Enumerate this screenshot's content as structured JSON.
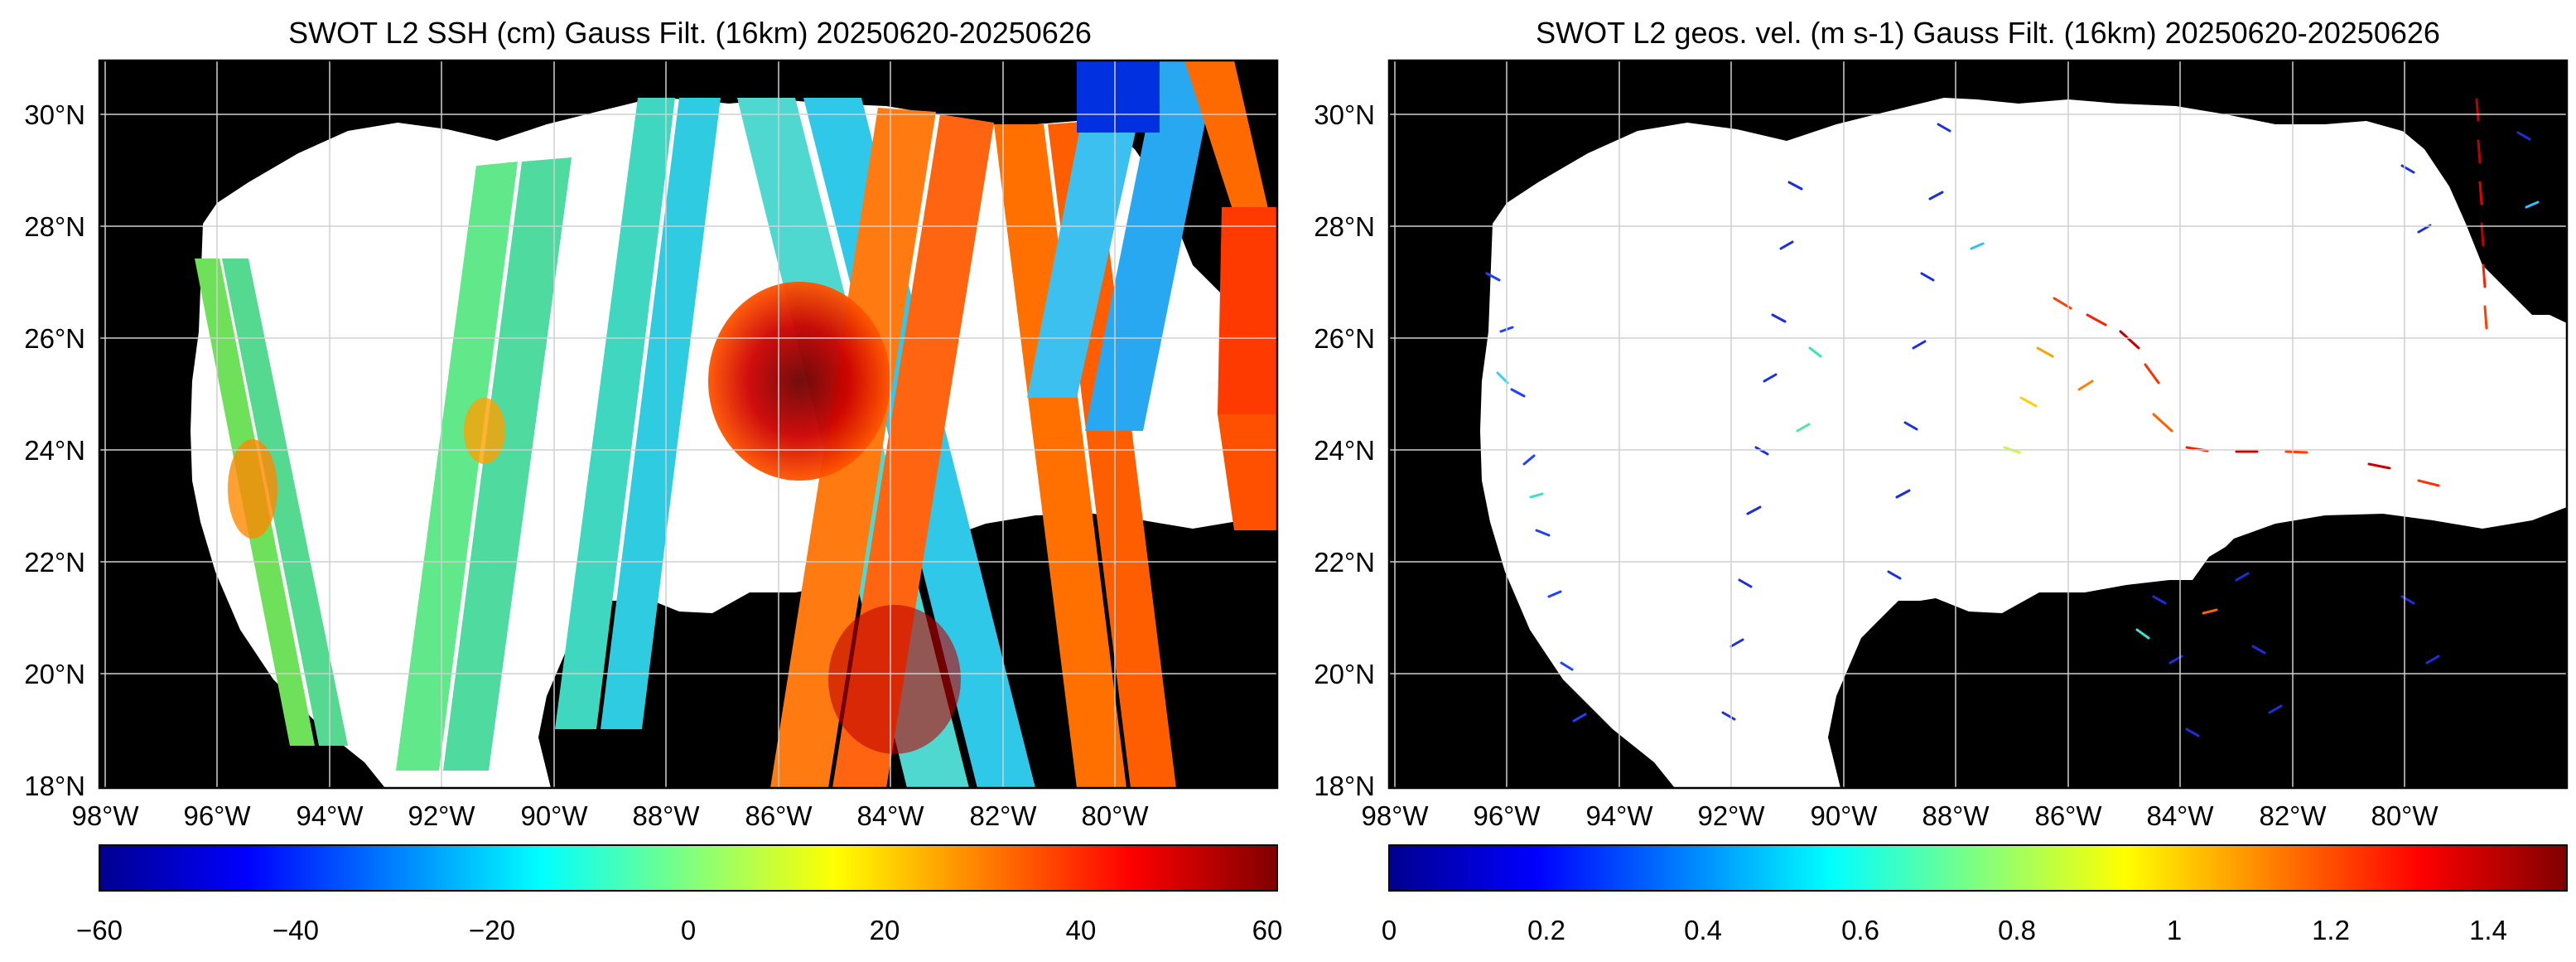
{
  "panels": [
    {
      "title": "SWOT L2 SSH (cm) Gauss Filt. (16km) 20250620-20250626",
      "lon_ticks": [
        "98°W",
        "96°W",
        "94°W",
        "92°W",
        "90°W",
        "88°W",
        "86°W",
        "84°W",
        "82°W",
        "80°W"
      ],
      "lat_ticks": [
        "30°N",
        "28°N",
        "26°N",
        "24°N",
        "22°N",
        "20°N",
        "18°N"
      ],
      "colorbar": {
        "colormap": "jet",
        "range": [
          -60,
          60
        ],
        "ticks": [
          "−60",
          "−40",
          "−20",
          "0",
          "20",
          "40",
          "60"
        ]
      }
    },
    {
      "title": "SWOT L2 geos. vel. (m s-1) Gauss Filt. (16km) 20250620-20250626",
      "lon_ticks": [
        "98°W",
        "96°W",
        "94°W",
        "92°W",
        "90°W",
        "88°W",
        "86°W",
        "84°W",
        "82°W",
        "80°W"
      ],
      "lat_ticks": [
        "30°N",
        "28°N",
        "26°N",
        "24°N",
        "22°N",
        "20°N",
        "18°N"
      ],
      "colorbar": {
        "colormap": "jet",
        "range": [
          0,
          1.5
        ],
        "ticks": [
          "0",
          "0.2",
          "0.4",
          "0.6",
          "0.8",
          "1",
          "1.2",
          "1.4"
        ]
      }
    }
  ],
  "map_extent": {
    "lon": [
      -99,
      -78
    ],
    "lat": [
      18,
      31
    ]
  },
  "colors": {
    "land": "#000000",
    "no_data": "#ffffff",
    "grid": "#d0d0d0"
  }
}
